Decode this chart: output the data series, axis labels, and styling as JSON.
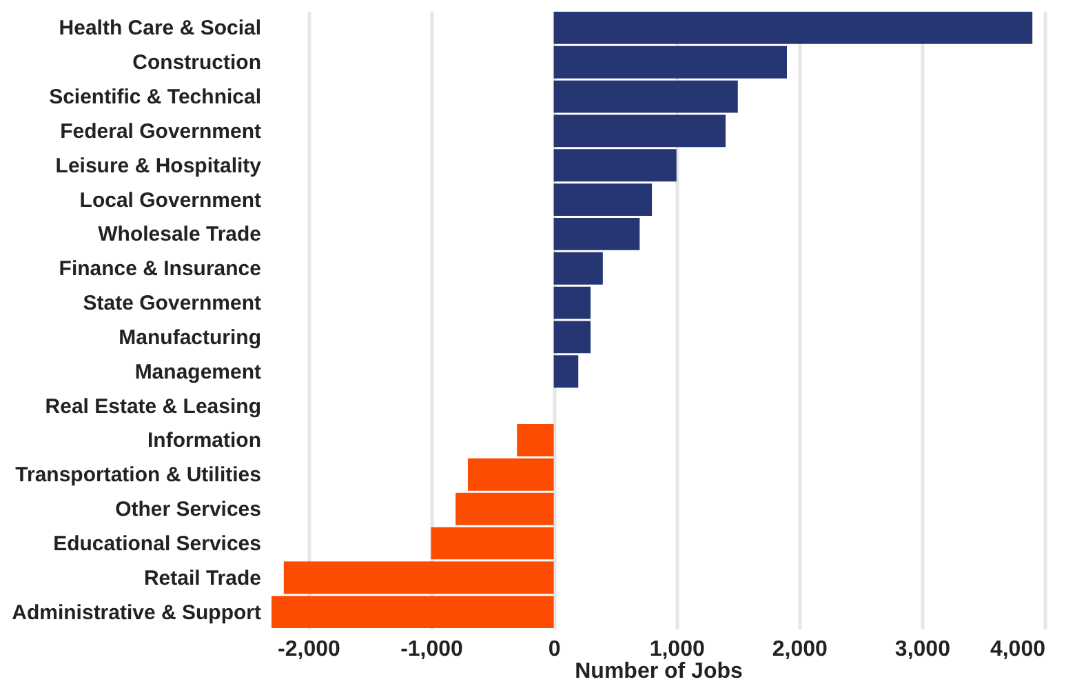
{
  "chart_data": {
    "type": "bar",
    "orientation": "horizontal",
    "xlabel": "Number of Jobs",
    "categories": [
      "Health Care & Social",
      "Construction",
      "Scientific & Technical",
      "Federal Government",
      "Leisure & Hospitality",
      "Local Government",
      "Wholesale Trade",
      "Finance & Insurance",
      "State Government",
      "Manufacturing",
      "Management",
      "Real Estate & Leasing",
      "Information",
      "Transportation & Utilities",
      "Other Services",
      "Educational Services",
      "Retail Trade",
      "Administrative & Support"
    ],
    "values": [
      3900,
      1900,
      1500,
      1400,
      1000,
      800,
      700,
      400,
      300,
      300,
      200,
      0,
      -300,
      -700,
      -800,
      -1000,
      -2200,
      -2300
    ],
    "colors": [
      "#263673",
      "#263673",
      "#263673",
      "#263673",
      "#263673",
      "#263673",
      "#263673",
      "#263673",
      "#263673",
      "#263673",
      "#263673",
      "#263673",
      "#fc4c02",
      "#fc4c02",
      "#fc4c02",
      "#fc4c02",
      "#fc4c02",
      "#fc4c02"
    ],
    "xlim": [
      -2300,
      4000
    ],
    "xticks": [
      {
        "value": -2000,
        "label": "-2,000"
      },
      {
        "value": -1000,
        "label": "-1,000"
      },
      0,
      {
        "value": 1000,
        "label": "1,000"
      },
      {
        "value": 2000,
        "label": "2,000"
      },
      {
        "value": 3000,
        "label": "3,000"
      },
      {
        "value": 4000,
        "label": "4,000"
      }
    ],
    "grid": "x"
  }
}
